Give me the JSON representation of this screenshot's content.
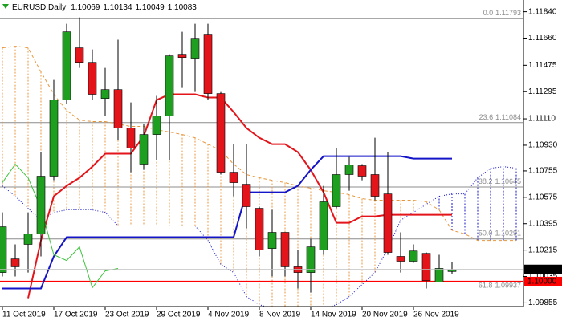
{
  "chart_data": {
    "type": "candlestick",
    "title": "EURUSD,Daily",
    "categories": [
      "11 Oct 2019",
      null,
      null,
      null,
      "17 Oct 2019",
      null,
      null,
      null,
      "23 Oct 2019",
      null,
      null,
      null,
      "29 Oct 2019",
      null,
      null,
      null,
      "4 Nov 2019",
      null,
      null,
      null,
      "8 Nov 2019",
      null,
      null,
      null,
      "14 Nov 2019",
      null,
      null,
      null,
      "20 Nov 2019",
      null,
      null,
      null,
      "26 Nov 2019",
      null,
      null,
      null,
      null,
      null,
      null,
      null,
      null
    ],
    "open": [
      1.10062,
      1.10155,
      1.10254,
      1.10325,
      1.10719,
      1.11238,
      1.11594,
      1.11495,
      1.11249,
      1.11309,
      1.11047,
      1.10801,
      1.11003,
      1.11129,
      1.1155,
      1.11523,
      1.11687,
      1.11282,
      1.10746,
      1.10664,
      1.105,
      1.10226,
      1.10336,
      1.10101,
      1.10062,
      1.10215,
      1.10511,
      1.1073,
      1.1079,
      1.1073,
      1.10598,
      1.10172,
      1.10139,
      1.10193,
      1.09996,
      1.10069,
      null,
      null,
      null,
      null,
      null
    ],
    "high": [
      1.10472,
      1.10254,
      1.10472,
      1.10883,
      1.11375,
      1.11758,
      1.11802,
      1.11583,
      1.11457,
      1.11649,
      1.11222,
      1.11074,
      1.11266,
      1.1155,
      1.11703,
      1.11758,
      1.11758,
      1.11293,
      1.10937,
      1.10937,
      1.10511,
      1.10489,
      1.10336,
      1.10215,
      1.10292,
      1.10653,
      1.1091,
      1.1085,
      1.10801,
      1.10981,
      1.10883,
      1.10336,
      1.10254,
      1.10199,
      1.10183,
      1.10134,
      null,
      null,
      null,
      null,
      null
    ],
    "low": [
      1.10035,
      1.10035,
      1.10062,
      1.10172,
      1.10691,
      1.11211,
      1.11457,
      1.11238,
      1.11129,
      1.10965,
      1.10746,
      1.10762,
      1.10828,
      1.10828,
      1.1132,
      1.11293,
      1.11238,
      1.1073,
      1.10582,
      1.10363,
      1.10172,
      1.10035,
      1.10035,
      1.09953,
      1.09925,
      1.10183,
      1.105,
      1.1062,
      1.10691,
      1.10555,
      1.10183,
      1.10062,
      1.10128,
      1.09953,
      1.09996,
      1.10049,
      null,
      null,
      null,
      null,
      null
    ],
    "close": [
      1.10374,
      1.10101,
      1.10325,
      1.10719,
      1.11238,
      1.11703,
      1.11495,
      1.11277,
      1.11309,
      1.11047,
      1.1091,
      1.11003,
      1.11129,
      1.11539,
      1.11528,
      1.11659,
      1.11282,
      1.10746,
      1.10675,
      1.10511,
      1.10215,
      1.10336,
      1.10101,
      1.10062,
      1.10237,
      1.10544,
      1.1073,
      1.10795,
      1.10719,
      1.10582,
      1.10199,
      1.10139,
      1.10209,
      1.10007,
      1.1009,
      1.10083,
      null,
      null,
      null,
      null,
      null
    ],
    "up_color": "#1f9f1f",
    "down_color": "#e3151b",
    "cloud": {
      "span_a": {
        "color": "#e8963c",
        "style": "dashed",
        "values": [
          1.11594,
          1.11605,
          1.11594,
          1.1143,
          1.11277,
          1.11167,
          1.11102,
          1.11091,
          1.11091,
          1.11074,
          1.11058,
          1.11058,
          1.11036,
          1.1102,
          1.11003,
          1.10981,
          1.10937,
          1.10894,
          1.10801,
          1.1073,
          1.10708,
          1.10691,
          1.10675,
          1.10653,
          1.10637,
          1.1062,
          1.10609,
          1.10593,
          1.10566,
          1.10555,
          1.10555,
          1.10555,
          1.10555,
          1.10544,
          1.10489,
          1.1035,
          1.10325,
          1.10281,
          1.10281,
          1.10281,
          1.10281
        ]
      },
      "span_b": {
        "color": "#1414c8",
        "style": "dotted",
        "values": [
          1.10653,
          1.10582,
          1.105,
          1.10418,
          1.10472,
          1.10489,
          1.10489,
          1.10489,
          1.10472,
          1.1038,
          1.1038,
          1.1038,
          1.1038,
          1.1038,
          1.1038,
          1.1038,
          1.10281,
          1.10117,
          1.10062,
          1.09898,
          1.09843,
          1.09816,
          1.098,
          1.098,
          1.098,
          1.09816,
          1.09843,
          1.09898,
          1.0998,
          1.10062,
          1.10226,
          1.10418,
          1.10472,
          1.10527,
          1.10582,
          1.10598,
          1.10598,
          1.10708,
          1.10773,
          1.10784,
          1.10773
        ]
      }
    },
    "lines": [
      {
        "color": "#e3151b",
        "style": "solid",
        "values": [
          null,
          null,
          1.09887,
          1.10281,
          1.10582,
          1.10653,
          1.10708,
          1.10784,
          1.10872,
          1.10872,
          1.10872,
          1.10992,
          1.11238,
          1.11277,
          1.11277,
          1.11277,
          1.11255,
          1.11255,
          1.11156,
          1.11047,
          1.10981,
          1.10937,
          1.10937,
          1.10883,
          1.10762,
          1.10609,
          1.10401,
          1.10401,
          1.10445,
          1.10445,
          1.10456,
          1.10456,
          1.10456,
          1.10456,
          1.10456,
          1.10456,
          null,
          null,
          null,
          null,
          null
        ]
      },
      {
        "color": "#1414c8",
        "style": "solid",
        "values": [
          1.09953,
          1.09953,
          1.09953,
          1.09953,
          1.10172,
          1.10303,
          1.10303,
          1.10303,
          1.10303,
          1.10303,
          1.10303,
          1.10303,
          1.10303,
          1.10303,
          1.10303,
          1.10303,
          1.10303,
          1.10303,
          1.10303,
          1.10609,
          1.10609,
          1.10609,
          1.10609,
          1.10653,
          1.10762,
          1.10855,
          1.10855,
          1.10855,
          1.10855,
          1.10855,
          1.10855,
          1.10855,
          1.10839,
          1.10839,
          1.10839,
          1.10839,
          null,
          null,
          null,
          null,
          null
        ]
      },
      {
        "color": "#3ec43e",
        "style": "solid",
        "values": [
          1.10675,
          1.10801,
          1.10708,
          1.105,
          1.10183,
          1.10144,
          1.10237,
          1.09958,
          1.10073,
          1.1009,
          null,
          null,
          null,
          null,
          null,
          null,
          null,
          null,
          null,
          null,
          null,
          null,
          null,
          null,
          null,
          null,
          null,
          null,
          null,
          null,
          null,
          null,
          null,
          null,
          null,
          null,
          null,
          null,
          null,
          null,
          null
        ]
      }
    ],
    "fibonacci": {
      "color": "#8c8c8c",
      "levels": [
        {
          "level": "0.0",
          "value": 1.11793
        },
        {
          "level": "23.6",
          "value": 1.11084
        },
        {
          "level": "38.2",
          "value": 1.10645
        },
        {
          "level": "50.0",
          "value": 1.10291
        },
        {
          "level": "61.8",
          "value": 1.09937
        }
      ]
    },
    "hline": {
      "value": 1.1,
      "label": "1.10000",
      "color": "#ff0000"
    },
    "ylim": [
      1.0983,
      1.1192
    ],
    "yticks": [
      {
        "value": 1.1184,
        "label": "1.11840"
      },
      {
        "value": 1.1166,
        "label": "1.11660"
      },
      {
        "value": 1.11475,
        "label": "1.11475"
      },
      {
        "value": 1.11295,
        "label": "1.11295"
      },
      {
        "value": 1.1111,
        "label": "1.11110"
      },
      {
        "value": 1.1093,
        "label": "1.10930"
      },
      {
        "value": 1.10755,
        "label": "1.10755"
      },
      {
        "value": 1.10575,
        "label": "1.10575"
      },
      {
        "value": 1.10395,
        "label": "1.10395"
      },
      {
        "value": 1.10215,
        "label": "1.10215"
      },
      {
        "value": 1.10035,
        "label": "1.10035"
      },
      {
        "value": 1.09855,
        "label": "1.09855"
      }
    ],
    "grid": false
  }
}
